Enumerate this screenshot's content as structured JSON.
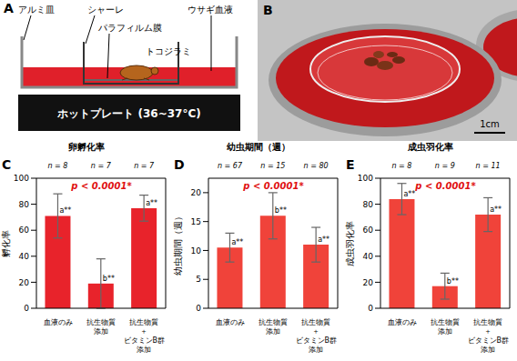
{
  "panels": {
    "A": {
      "label": "A",
      "aluminum_dish": "アルミ皿",
      "petri_dish": "シャーレ",
      "membrane": "パラフィルム膜",
      "bedbug": "トコジラミ",
      "blood": "ウサギ血液",
      "hot_plate": "ホットプレート (36~37°C)"
    },
    "B": {
      "label": "B",
      "scale_bar": "1cm"
    }
  },
  "chart_data": [
    {
      "type": "bar",
      "panel": "C",
      "title": "卵孵化率",
      "y_label": "孵化率",
      "categories": [
        "血液のみ",
        "抗生物質\n添加",
        "抗生物質\n＋\nビタミンB群\n添加"
      ],
      "values": [
        71,
        19,
        77
      ],
      "errors": [
        17,
        19,
        10
      ],
      "n_labels": [
        "n = 8",
        "n = 7",
        "n = 7"
      ],
      "significance_labels": [
        "a**",
        "b**",
        "a**"
      ],
      "p_value_label": "p < 0.0001*",
      "color": "#e8232b",
      "ylim": [
        0,
        100
      ],
      "yticks": [
        0,
        20,
        40,
        60,
        80,
        100
      ],
      "grid": false
    },
    {
      "type": "bar",
      "panel": "D",
      "title": "幼虫期間（週）",
      "y_label": "幼虫期間（週）",
      "categories": [
        "血液のみ",
        "抗生物質\n添加",
        "抗生物質\n＋\nビタミンB群\n添加"
      ],
      "values": [
        10.5,
        16,
        11
      ],
      "errors": [
        2.5,
        4,
        3
      ],
      "n_labels": [
        "n = 67",
        "n = 15",
        "n = 80"
      ],
      "significance_labels": [
        "a**",
        "b**",
        "a**"
      ],
      "p_value_label": "p < 0.0001*",
      "color": "#f0433a",
      "ylim": [
        0,
        22.5
      ],
      "yticks": [
        0,
        5,
        10,
        15,
        20
      ],
      "grid": false
    },
    {
      "type": "bar",
      "panel": "E",
      "title": "成虫羽化率",
      "y_label": "成虫羽化率",
      "categories": [
        "血液のみ",
        "抗生物質\n添加",
        "抗生物質\n＋\nビタミンB群\n添加"
      ],
      "values": [
        84,
        17,
        72
      ],
      "errors": [
        12,
        10,
        13
      ],
      "n_labels": [
        "n = 8",
        "n = 9",
        "n = 11"
      ],
      "significance_labels": [
        "a**",
        "b**",
        "a**"
      ],
      "p_value_label": "p < 0.0001*",
      "color": "#f0433a",
      "ylim": [
        0,
        100
      ],
      "yticks": [
        0,
        20,
        40,
        60,
        80,
        100
      ],
      "grid": false
    }
  ]
}
